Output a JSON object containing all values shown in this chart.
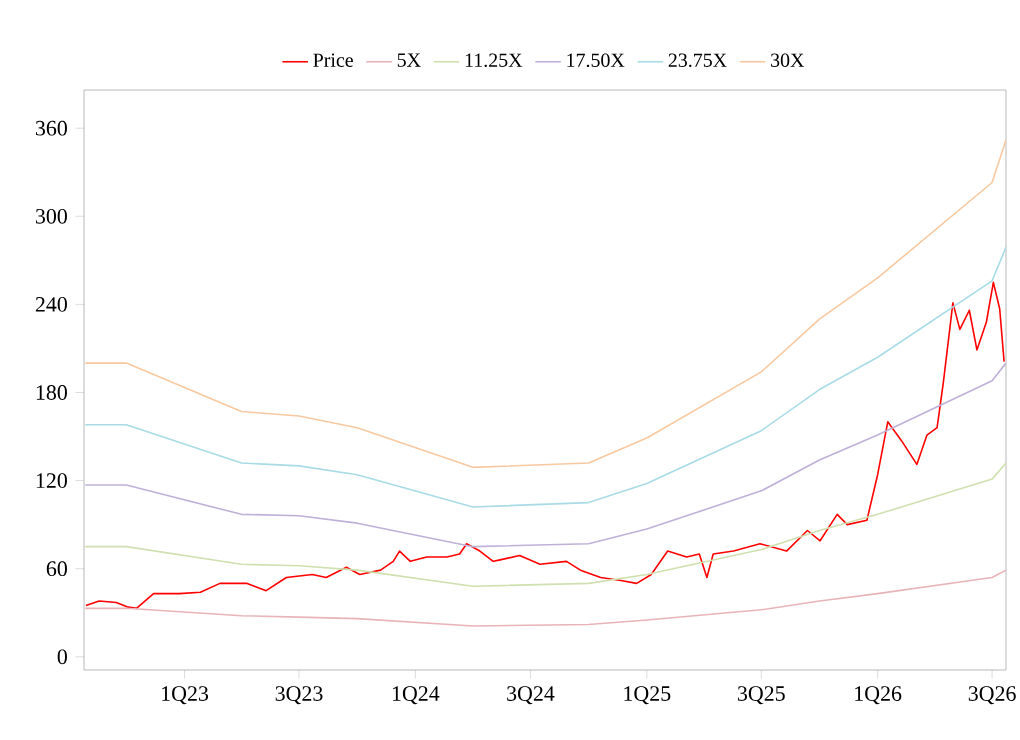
{
  "chart_data": {
    "type": "line",
    "xlim": [
      "2022-07-26",
      "2026-07-23"
    ],
    "ylim": [
      -9,
      386
    ],
    "xticks": [
      {
        "value": "2023-01-01",
        "label": "1Q23"
      },
      {
        "value": "2023-07-01",
        "label": "3Q23"
      },
      {
        "value": "2024-01-01",
        "label": "1Q24"
      },
      {
        "value": "2024-07-01",
        "label": "3Q24"
      },
      {
        "value": "2025-01-01",
        "label": "1Q25"
      },
      {
        "value": "2025-07-01",
        "label": "3Q25"
      },
      {
        "value": "2026-01-01",
        "label": "1Q26"
      },
      {
        "value": "2026-07-01",
        "label": "3Q26"
      }
    ],
    "yticks": [
      0,
      60,
      120,
      180,
      240,
      300,
      360
    ],
    "grid": false,
    "legend": "top",
    "marker": "none",
    "line_style": "solid",
    "series": [
      {
        "name": "Price",
        "color": "#ff0000",
        "x": [
          "2022-07-29",
          "2022-08-19",
          "2022-09-15",
          "2022-10-02",
          "2022-10-17",
          "2022-11-13",
          "2022-12-24",
          "2023-01-26",
          "2023-02-26",
          "2023-04-09",
          "2023-05-10",
          "2023-06-11",
          "2023-07-22",
          "2023-08-13",
          "2023-09-14",
          "2023-10-05",
          "2023-11-07",
          "2023-11-27",
          "2023-12-07",
          "2023-12-24",
          "2024-01-19",
          "2024-02-20",
          "2024-03-11",
          "2024-03-22",
          "2024-04-12",
          "2024-05-03",
          "2024-05-14",
          "2024-06-14",
          "2024-07-16",
          "2024-08-27",
          "2024-09-18",
          "2024-10-20",
          "2024-11-21",
          "2024-12-16",
          "2025-01-08",
          "2025-02-03",
          "2025-03-05",
          "2025-03-25",
          "2025-04-06",
          "2025-04-16",
          "2025-05-18",
          "2025-06-29",
          "2025-08-10",
          "2025-09-12",
          "2025-10-02",
          "2025-10-29",
          "2025-11-14",
          "2025-12-15",
          "2026-01-01",
          "2026-01-17",
          "2026-02-08",
          "2026-03-04",
          "2026-03-20",
          "2026-04-05",
          "2026-04-15",
          "2026-04-30",
          "2026-05-11",
          "2026-05-26",
          "2026-06-07",
          "2026-06-22",
          "2026-07-03",
          "2026-07-13",
          "2026-07-20"
        ],
        "values": [
          35,
          38,
          37,
          34,
          33,
          43,
          43,
          44,
          50,
          50,
          45,
          54,
          56,
          54,
          61,
          56,
          59,
          65,
          72,
          65,
          68,
          68,
          70,
          77,
          72,
          65,
          66,
          69,
          63,
          65,
          59,
          54,
          52,
          50,
          56,
          72,
          68,
          70,
          54,
          70,
          72,
          77,
          72,
          86,
          79,
          97,
          90,
          93,
          124,
          160,
          147,
          131,
          151,
          156,
          187,
          241,
          223,
          236,
          209,
          228,
          255,
          237,
          201
        ]
      },
      {
        "name": "5X",
        "color": "#e8b4b8",
        "x": [
          "2022-07-28",
          "2022-10-01",
          "2023-04-01",
          "2023-07-01",
          "2023-10-01",
          "2024-04-01",
          "2024-10-01",
          "2025-01-01",
          "2025-07-01",
          "2025-10-01",
          "2026-01-01",
          "2026-07-01",
          "2026-07-23"
        ],
        "values": [
          33,
          33,
          28,
          27,
          26,
          21,
          22,
          25,
          32,
          38,
          43,
          54,
          59
        ]
      },
      {
        "name": "11.25X",
        "color": "#cfe0b0",
        "x": [
          "2022-07-28",
          "2022-10-01",
          "2023-04-01",
          "2023-07-01",
          "2023-10-01",
          "2024-04-01",
          "2024-10-01",
          "2025-01-01",
          "2025-07-01",
          "2025-10-01",
          "2026-01-01",
          "2026-07-01",
          "2026-07-23"
        ],
        "values": [
          75,
          75,
          63,
          62,
          59,
          48,
          50,
          56,
          73,
          86,
          97,
          121,
          132
        ]
      },
      {
        "name": "17.50X",
        "color": "#bfb0d8",
        "x": [
          "2022-07-28",
          "2022-10-01",
          "2023-04-01",
          "2023-07-01",
          "2023-10-01",
          "2024-04-01",
          "2024-10-01",
          "2025-01-01",
          "2025-07-01",
          "2025-10-01",
          "2026-01-01",
          "2026-07-01",
          "2026-07-23"
        ],
        "values": [
          117,
          117,
          97,
          96,
          91,
          75,
          77,
          87,
          113,
          134,
          151,
          188,
          200
        ]
      },
      {
        "name": "23.75X",
        "color": "#a8dbe6",
        "x": [
          "2022-07-28",
          "2022-10-01",
          "2023-04-01",
          "2023-07-01",
          "2023-10-01",
          "2024-04-01",
          "2024-10-01",
          "2025-01-01",
          "2025-07-01",
          "2025-10-01",
          "2026-01-01",
          "2026-07-01",
          "2026-07-23"
        ],
        "values": [
          158,
          158,
          132,
          130,
          124,
          102,
          105,
          118,
          154,
          182,
          204,
          256,
          279
        ]
      },
      {
        "name": "30X",
        "color": "#f8c8a0",
        "x": [
          "2022-07-28",
          "2022-10-01",
          "2023-04-01",
          "2023-07-01",
          "2023-10-01",
          "2024-04-01",
          "2024-10-01",
          "2025-01-01",
          "2025-07-01",
          "2025-10-01",
          "2026-01-01",
          "2026-07-01",
          "2026-07-23"
        ],
        "values": [
          200,
          200,
          167,
          164,
          156,
          129,
          132,
          149,
          194,
          230,
          258,
          323,
          352
        ]
      }
    ]
  }
}
